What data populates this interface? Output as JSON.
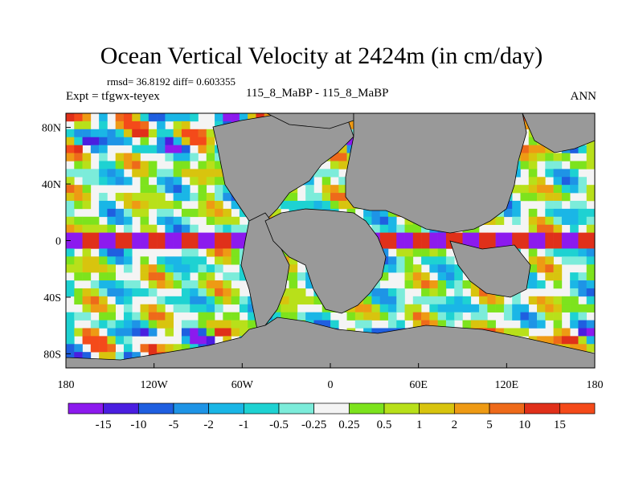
{
  "chart_data": {
    "type": "heatmap",
    "title": "Ocean Vertical Velocity at 2424m (in cm/day)",
    "stats_text": "rmsd= 36.8192 diff= 0.603355",
    "left_label": "Expt = tfgwx-teyex",
    "center_label": "115_8_MaBP - 115_8_MaBP",
    "right_label": "ANN",
    "x_ticks": [
      "180",
      "120W",
      "60W",
      "0",
      "60E",
      "120E",
      "180"
    ],
    "y_ticks": [
      "80N",
      "40N",
      "0",
      "40S",
      "80S"
    ],
    "colorbar_labels": [
      "-15",
      "-10",
      "-5",
      "-2",
      "-1",
      "-0.5",
      "-0.25",
      "0.25",
      "0.5",
      "1",
      "2",
      "5",
      "10",
      "15"
    ],
    "colorbar_colors": [
      "#8c1aee",
      "#4a1ee0",
      "#1f5fe0",
      "#1e94e6",
      "#1ab6e6",
      "#1ed2d2",
      "#7cecda",
      "#f4f4f4",
      "#7de31d",
      "#b8e01a",
      "#d8c40e",
      "#ee9a14",
      "#ee6a1a",
      "#e0301a",
      "#f44a1a"
    ],
    "land_color": "#999999",
    "ylim": [
      -90,
      90
    ],
    "xlim": [
      -180,
      180
    ]
  }
}
